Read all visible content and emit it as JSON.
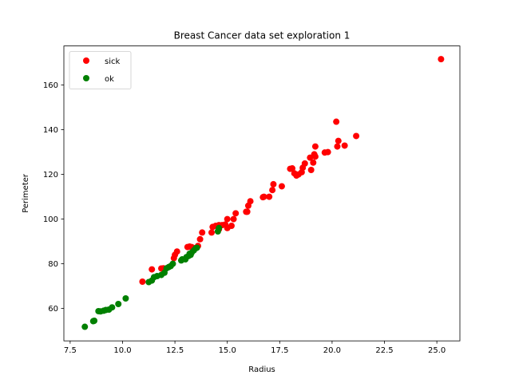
{
  "chart_data": {
    "type": "scatter",
    "title": "Breast Cancer data set exploration 1",
    "xlabel": "Radius",
    "ylabel": "Perimeter",
    "xlim": [
      7.2,
      26.1
    ],
    "ylim": [
      45.5,
      177.5
    ],
    "xticks": [
      7.5,
      10.0,
      12.5,
      15.0,
      17.5,
      20.0,
      22.5,
      25.0
    ],
    "xtick_labels": [
      "7.5",
      "10.0",
      "12.5",
      "15.0",
      "17.5",
      "20.0",
      "22.5",
      "25.0"
    ],
    "yticks": [
      60,
      80,
      100,
      120,
      140,
      160
    ],
    "ytick_labels": [
      "60",
      "80",
      "100",
      "120",
      "140",
      "160"
    ],
    "grid": false,
    "legend_position": "top-left",
    "series": [
      {
        "name": "sick",
        "color": "#ff0000",
        "x": [
          25.2,
          21.15,
          20.6,
          20.3,
          20.2,
          20.25,
          19.8,
          19.65,
          19.2,
          19.2,
          19.15,
          19.1,
          19.0,
          18.95,
          18.7,
          18.6,
          18.55,
          18.4,
          18.3,
          18.2,
          18.1,
          18.0,
          17.6,
          17.2,
          17.15,
          17.0,
          16.75,
          16.7,
          16.1,
          16.0,
          15.95,
          15.9,
          15.4,
          15.3,
          15.2,
          15.0,
          15.0,
          14.9,
          14.75,
          14.6,
          14.6,
          14.45,
          14.3,
          14.25,
          13.8,
          13.7,
          13.6,
          13.4,
          13.3,
          13.2,
          13.1,
          12.6,
          12.5,
          12.45,
          11.95,
          11.85,
          11.4,
          10.95
        ],
        "y": [
          171.6,
          137.2,
          132.9,
          135.0,
          143.6,
          132.5,
          130.0,
          129.8,
          132.5,
          128.0,
          129.0,
          125.3,
          122.0,
          127.5,
          124.9,
          123.0,
          121.0,
          120.0,
          119.5,
          120.5,
          122.7,
          122.5,
          114.7,
          115.6,
          113.0,
          110.0,
          110.0,
          109.8,
          108.0,
          106.0,
          103.3,
          103.3,
          102.6,
          100.0,
          97.0,
          96.0,
          100.0,
          97.6,
          97.3,
          97.3,
          95.5,
          97.0,
          96.5,
          94.0,
          94.0,
          91.0,
          88.0,
          87.0,
          87.5,
          87.7,
          87.5,
          85.5,
          84.0,
          82.5,
          78.0,
          77.9,
          77.5,
          72.0
        ]
      },
      {
        "name": "ok",
        "color": "#008000",
        "x": [
          14.6,
          14.55,
          13.55,
          13.5,
          13.4,
          13.3,
          13.25,
          13.2,
          13.15,
          13.05,
          13.0,
          12.85,
          12.8,
          12.4,
          12.3,
          12.2,
          12.1,
          12.0,
          11.85,
          11.65,
          11.5,
          11.4,
          11.25,
          10.15,
          9.8,
          9.5,
          9.35,
          9.2,
          9.1,
          8.95,
          8.85,
          8.65,
          8.6,
          8.2
        ],
        "y": [
          96.0,
          94.5,
          87.2,
          87.0,
          86.0,
          85.0,
          84.0,
          84.5,
          83.5,
          83.0,
          82.0,
          82.0,
          81.5,
          80.0,
          79.0,
          78.5,
          78.0,
          76.0,
          75.0,
          74.5,
          74.0,
          72.5,
          71.8,
          64.5,
          62.0,
          60.5,
          59.5,
          59.3,
          59.0,
          58.7,
          58.8,
          54.5,
          54.3,
          51.8
        ]
      }
    ]
  }
}
